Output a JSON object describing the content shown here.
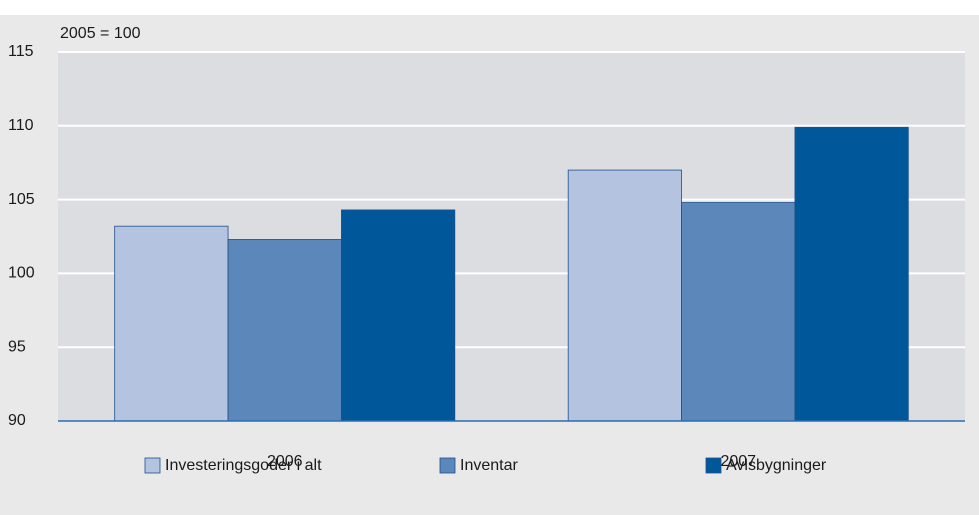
{
  "chart_data": {
    "type": "bar",
    "annotation": "2005 = 100",
    "categories": [
      "2006",
      "2007"
    ],
    "series": [
      {
        "name": "Investeringsgoder i alt",
        "color": "#b3c3e0",
        "values": [
          103.2,
          107.0
        ]
      },
      {
        "name": "Inventar",
        "color": "#5b87bb",
        "values": [
          102.3,
          104.8
        ]
      },
      {
        "name": "Avlsbygninger",
        "color": "#00589b",
        "values": [
          104.3,
          109.9
        ]
      }
    ],
    "ylim": [
      90,
      115
    ],
    "yticks": [
      90,
      95,
      100,
      105,
      110,
      115
    ],
    "grid": true
  }
}
